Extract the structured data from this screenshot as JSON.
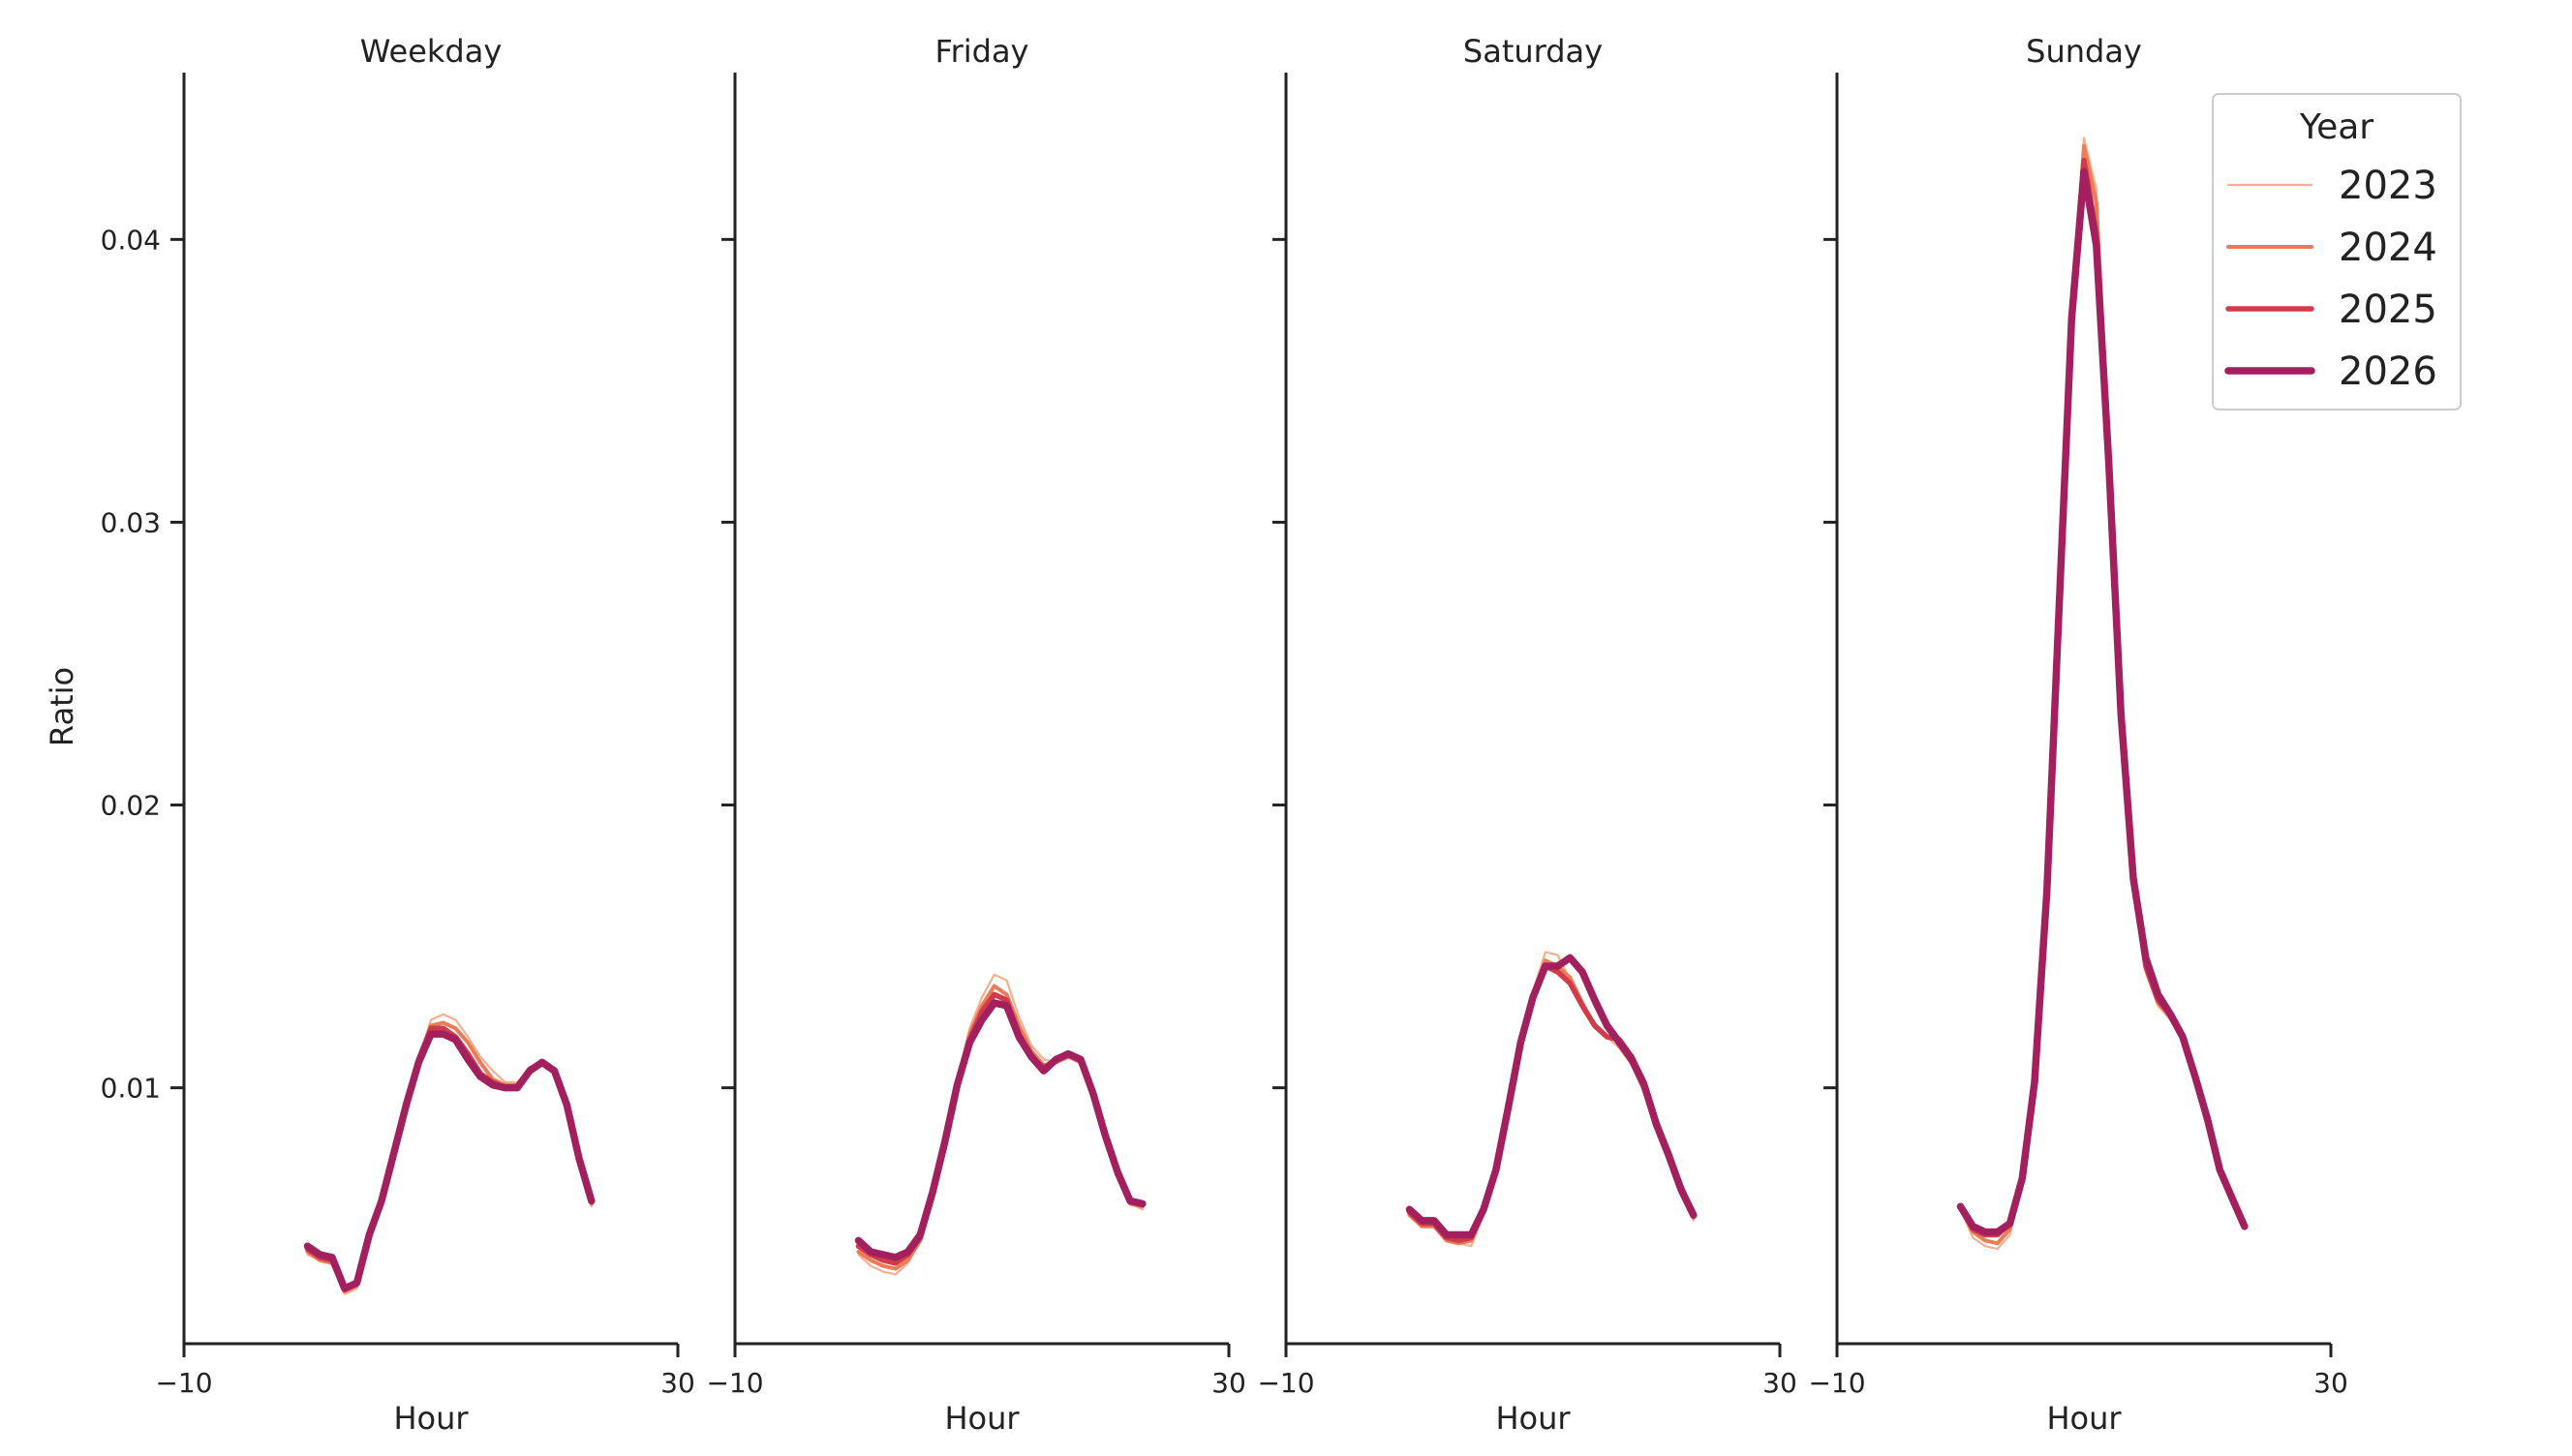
{
  "chart_data": {
    "type": "line",
    "ylabel": "Ratio",
    "xlabel": "Hour",
    "xlim": [
      -10,
      30
    ],
    "x_ticks": [
      -10,
      30
    ],
    "x_tick_labels": [
      "−10",
      "30"
    ],
    "ylim": [
      0.00095,
      0.0459
    ],
    "y_ticks": [
      0.01,
      0.02,
      0.03,
      0.04
    ],
    "y_tick_labels": [
      "0.01",
      "0.02",
      "0.03",
      "0.04"
    ],
    "hours": [
      0,
      1,
      2,
      3,
      4,
      5,
      6,
      7,
      8,
      9,
      10,
      11,
      12,
      13,
      14,
      15,
      16,
      17,
      18,
      19,
      20,
      21,
      22,
      23
    ],
    "legend": {
      "title": "Year",
      "placement": "top-right",
      "entries": [
        {
          "label": "2023",
          "color": "#f4b190"
        },
        {
          "label": "2024",
          "color": "#ec7b58"
        },
        {
          "label": "2025",
          "color": "#d13c4b"
        },
        {
          "label": "2026",
          "color": "#a3205f"
        }
      ]
    },
    "panels": [
      {
        "title": "Weekday",
        "series": [
          {
            "name": "2023",
            "values": [
              0.0041,
              0.0039,
              0.0038,
              0.0027,
              0.0029,
              0.0046,
              0.006,
              0.0076,
              0.0094,
              0.011,
              0.0124,
              0.0126,
              0.0124,
              0.0118,
              0.0111,
              0.0106,
              0.0102,
              0.0102,
              0.0107,
              0.0109,
              0.0106,
              0.0093,
              0.0074,
              0.0058
            ]
          },
          {
            "name": "2024",
            "values": [
              0.0042,
              0.0039,
              0.0038,
              0.0028,
              0.003,
              0.0047,
              0.006,
              0.0076,
              0.0094,
              0.011,
              0.0122,
              0.0123,
              0.0121,
              0.0116,
              0.0109,
              0.0103,
              0.0101,
              0.0101,
              0.0107,
              0.0109,
              0.0106,
              0.0093,
              0.0074,
              0.0059
            ]
          },
          {
            "name": "2025",
            "values": [
              0.0043,
              0.004,
              0.0039,
              0.0029,
              0.0031,
              0.0047,
              0.006,
              0.0077,
              0.0094,
              0.011,
              0.0121,
              0.0121,
              0.0118,
              0.0112,
              0.0105,
              0.0102,
              0.01,
              0.01,
              0.0106,
              0.0109,
              0.0106,
              0.0094,
              0.0075,
              0.006
            ]
          },
          {
            "name": "2026",
            "values": [
              0.0044,
              0.0041,
              0.004,
              0.0029,
              0.0031,
              0.0048,
              0.006,
              0.0077,
              0.0094,
              0.0109,
              0.0119,
              0.0119,
              0.0117,
              0.011,
              0.0104,
              0.0101,
              0.01,
              0.01,
              0.0106,
              0.0109,
              0.0106,
              0.0094,
              0.0075,
              0.006
            ]
          }
        ]
      },
      {
        "title": "Friday",
        "series": [
          {
            "name": "2023",
            "values": [
              0.0041,
              0.0037,
              0.0035,
              0.0034,
              0.0038,
              0.0046,
              0.0062,
              0.0082,
              0.0103,
              0.0121,
              0.0132,
              0.014,
              0.0138,
              0.0125,
              0.0115,
              0.011,
              0.0109,
              0.0111,
              0.0109,
              0.0098,
              0.0083,
              0.0069,
              0.0059,
              0.0057
            ]
          },
          {
            "name": "2024",
            "values": [
              0.0042,
              0.0039,
              0.0037,
              0.0036,
              0.0039,
              0.0046,
              0.0062,
              0.0081,
              0.0102,
              0.0119,
              0.0129,
              0.0136,
              0.0133,
              0.0122,
              0.0113,
              0.0108,
              0.0109,
              0.0111,
              0.0109,
              0.0098,
              0.0083,
              0.0069,
              0.0059,
              0.0058
            ]
          },
          {
            "name": "2025",
            "values": [
              0.0044,
              0.0041,
              0.0039,
              0.0038,
              0.0041,
              0.0047,
              0.0062,
              0.0081,
              0.0101,
              0.0117,
              0.0127,
              0.0133,
              0.0131,
              0.0119,
              0.0111,
              0.0107,
              0.011,
              0.0112,
              0.011,
              0.0098,
              0.0083,
              0.007,
              0.006,
              0.0059
            ]
          },
          {
            "name": "2026",
            "values": [
              0.0046,
              0.0042,
              0.0041,
              0.004,
              0.0042,
              0.0048,
              0.0063,
              0.0081,
              0.0101,
              0.0116,
              0.0124,
              0.013,
              0.0129,
              0.0118,
              0.0111,
              0.0106,
              0.011,
              0.0112,
              0.011,
              0.0098,
              0.0083,
              0.007,
              0.006,
              0.0059
            ]
          }
        ]
      },
      {
        "title": "Saturday",
        "series": [
          {
            "name": "2023",
            "values": [
              0.0055,
              0.0051,
              0.0051,
              0.0046,
              0.0045,
              0.0044,
              0.0055,
              0.007,
              0.0093,
              0.0117,
              0.0134,
              0.0148,
              0.0147,
              0.0138,
              0.0128,
              0.0121,
              0.0118,
              0.0114,
              0.0108,
              0.0098,
              0.0085,
              0.0076,
              0.0064,
              0.0053
            ]
          },
          {
            "name": "2024",
            "values": [
              0.0055,
              0.0051,
              0.0051,
              0.0046,
              0.0045,
              0.0046,
              0.0056,
              0.0071,
              0.0093,
              0.0116,
              0.0133,
              0.0145,
              0.0143,
              0.0139,
              0.013,
              0.0122,
              0.0118,
              0.0117,
              0.0111,
              0.0101,
              0.0087,
              0.0077,
              0.0065,
              0.0054
            ]
          },
          {
            "name": "2025",
            "values": [
              0.0056,
              0.0052,
              0.0052,
              0.0047,
              0.0046,
              0.0047,
              0.0057,
              0.0071,
              0.0093,
              0.0116,
              0.0132,
              0.0143,
              0.0141,
              0.0137,
              0.0129,
              0.0122,
              0.0118,
              0.0117,
              0.0111,
              0.0102,
              0.0088,
              0.0077,
              0.0065,
              0.0055
            ]
          },
          {
            "name": "2026",
            "values": [
              0.0057,
              0.0053,
              0.0053,
              0.0048,
              0.0048,
              0.0048,
              0.0057,
              0.0071,
              0.0093,
              0.0116,
              0.0132,
              0.0143,
              0.0143,
              0.0146,
              0.0141,
              0.0131,
              0.0122,
              0.0116,
              0.011,
              0.0101,
              0.0087,
              0.0076,
              0.0064,
              0.0055
            ]
          }
        ]
      },
      {
        "title": "Sunday",
        "series": [
          {
            "name": "2023",
            "values": [
              0.0057,
              0.0047,
              0.0044,
              0.0043,
              0.0048,
              0.0067,
              0.0102,
              0.017,
              0.0271,
              0.0372,
              0.0436,
              0.0418,
              0.033,
              0.0232,
              0.0173,
              0.0141,
              0.0129,
              0.0124,
              0.0117,
              0.0104,
              0.0089,
              0.0071,
              0.0061,
              0.005
            ]
          },
          {
            "name": "2024",
            "values": [
              0.0058,
              0.0049,
              0.0046,
              0.0045,
              0.005,
              0.0068,
              0.0102,
              0.017,
              0.0271,
              0.0372,
              0.0433,
              0.0413,
              0.0328,
              0.0232,
              0.0174,
              0.0142,
              0.013,
              0.0125,
              0.0117,
              0.0104,
              0.0089,
              0.0071,
              0.0061,
              0.0051
            ]
          },
          {
            "name": "2025",
            "values": [
              0.0058,
              0.005,
              0.0048,
              0.0048,
              0.0052,
              0.0068,
              0.0102,
              0.017,
              0.0271,
              0.0372,
              0.0428,
              0.0402,
              0.0325,
              0.0232,
              0.0174,
              0.0143,
              0.0131,
              0.0126,
              0.0118,
              0.0104,
              0.0089,
              0.0071,
              0.0061,
              0.0051
            ]
          },
          {
            "name": "2026",
            "values": [
              0.0058,
              0.0051,
              0.0049,
              0.0049,
              0.0052,
              0.0068,
              0.0102,
              0.017,
              0.0271,
              0.0372,
              0.0424,
              0.0398,
              0.0322,
              0.0232,
              0.0174,
              0.0146,
              0.0133,
              0.0126,
              0.0118,
              0.0104,
              0.0089,
              0.0071,
              0.0061,
              0.0051
            ]
          }
        ]
      }
    ]
  }
}
